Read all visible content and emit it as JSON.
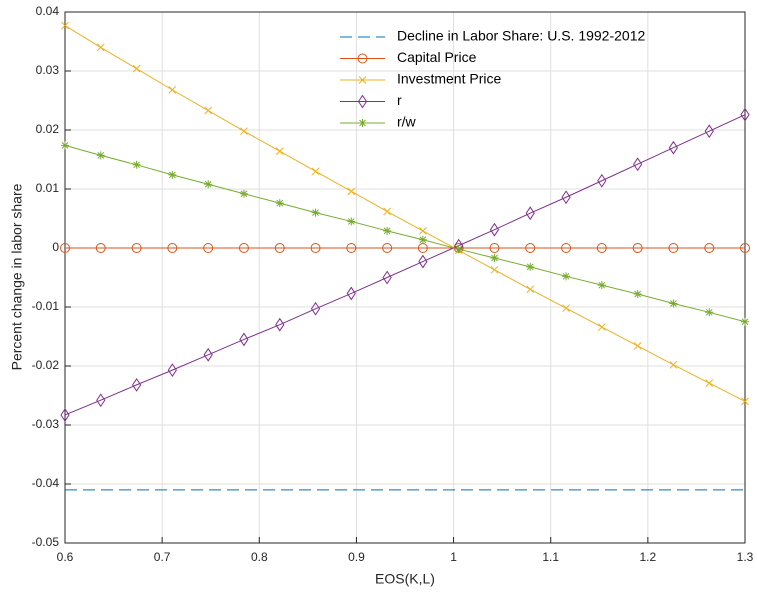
{
  "chart_data": {
    "type": "line",
    "xlabel": "EOS(K,L)",
    "ylabel": "Percent change in labor share",
    "x": [
      0.6,
      0.6368,
      0.6737,
      0.7105,
      0.7474,
      0.7842,
      0.8211,
      0.8579,
      0.8947,
      0.9316,
      0.9684,
      1.0053,
      1.0421,
      1.0789,
      1.1158,
      1.1526,
      1.1895,
      1.2263,
      1.2632,
      1.3
    ],
    "series": [
      {
        "name": "Decline in Labor Share: U.S. 1992-2012",
        "color": "#0072bd",
        "marker": "none",
        "dashed": true,
        "values": [
          -0.041,
          -0.041,
          -0.041,
          -0.041,
          -0.041,
          -0.041,
          -0.041,
          -0.041,
          -0.041,
          -0.041,
          -0.041,
          -0.041,
          -0.041,
          -0.041,
          -0.041,
          -0.041,
          -0.041,
          -0.041,
          -0.041,
          -0.041
        ]
      },
      {
        "name": "Capital Price",
        "color": "#d95319",
        "marker": "circle",
        "values": [
          0,
          0,
          0,
          0,
          0,
          0,
          0,
          0,
          0,
          0,
          0,
          0,
          0,
          0,
          0,
          0,
          0,
          0,
          0,
          0
        ]
      },
      {
        "name": "Investment Price",
        "color": "#edb120",
        "marker": "x",
        "values": [
          0.0377,
          0.034,
          0.0304,
          0.0268,
          0.0233,
          0.0198,
          0.0164,
          0.013,
          0.0096,
          0.0062,
          0.0029,
          -0.0004,
          -0.0037,
          -0.007,
          -0.0102,
          -0.0134,
          -0.0166,
          -0.0198,
          -0.0229,
          -0.026
        ]
      },
      {
        "name": "r",
        "color": "#7e2f8e",
        "marker": "diamond",
        "values": [
          -0.0283,
          -0.0258,
          -0.0232,
          -0.0207,
          -0.0181,
          -0.0155,
          -0.013,
          -0.0103,
          -0.0077,
          -0.005,
          -0.0023,
          0.0004,
          0.0031,
          0.0059,
          0.0086,
          0.0114,
          0.0142,
          0.017,
          0.0198,
          0.0226
        ]
      },
      {
        "name": "r/w",
        "color": "#77ac30",
        "marker": "star",
        "values": [
          0.0174,
          0.0157,
          0.0141,
          0.0124,
          0.0108,
          0.0092,
          0.0076,
          0.006,
          0.0045,
          0.0029,
          0.0014,
          -0.0002,
          -0.0017,
          -0.0032,
          -0.0048,
          -0.0063,
          -0.0078,
          -0.0094,
          -0.0109,
          -0.0125
        ]
      }
    ],
    "xlim": [
      0.6,
      1.3
    ],
    "xticks": [
      0.6,
      0.7,
      0.8,
      0.9,
      1,
      1.1,
      1.2,
      1.3
    ],
    "ylim": [
      -0.05,
      0.04
    ],
    "yticks": [
      -0.05,
      -0.04,
      -0.03,
      -0.02,
      -0.01,
      0,
      0.01,
      0.02,
      0.03,
      0.04
    ],
    "grid": true,
    "legend": "top-right"
  }
}
